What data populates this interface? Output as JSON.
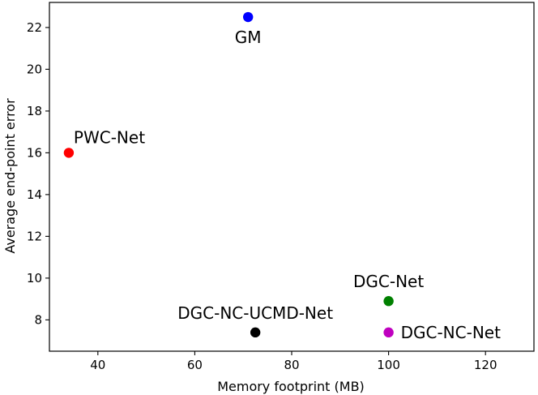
{
  "chart_data": {
    "type": "scatter",
    "title": "",
    "xlabel": "Memory footprint (MB)",
    "ylabel": "Average end-point error",
    "xlim": [
      30,
      130
    ],
    "ylim": [
      6.5,
      23.2
    ],
    "xticks": [
      40,
      60,
      80,
      100,
      120
    ],
    "yticks": [
      8,
      10,
      12,
      14,
      16,
      18,
      20,
      22
    ],
    "grid": false,
    "legend": false,
    "points": [
      {
        "label": "GM",
        "x": 71,
        "y": 22.5,
        "color": "#0000ff",
        "label_position": "below"
      },
      {
        "label": "PWC-Net",
        "x": 34,
        "y": 16.0,
        "color": "#ff0000",
        "label_position": "above-right"
      },
      {
        "label": "DGC-Net",
        "x": 100,
        "y": 8.9,
        "color": "#008000",
        "label_position": "above"
      },
      {
        "label": "DGC-NC-UCMD-Net",
        "x": 72.5,
        "y": 7.4,
        "color": "#000000",
        "label_position": "above"
      },
      {
        "label": "DGC-NC-Net",
        "x": 100,
        "y": 7.4,
        "color": "#bf00bf",
        "label_position": "right"
      }
    ]
  }
}
